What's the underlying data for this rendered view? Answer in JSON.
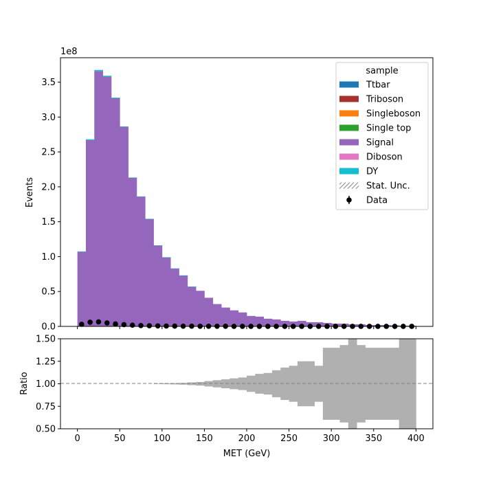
{
  "chart_data": {
    "type": "bar",
    "main": {
      "ylabel": "Events",
      "offset_text": "1e8",
      "yticks": [
        0,
        0.5,
        1.0,
        1.5,
        2.0,
        2.5,
        3.0,
        3.5
      ],
      "ytick_labels": [
        "0.0",
        "0.5",
        "1.0",
        "1.5",
        "2.0",
        "2.5",
        "3.0",
        "3.5"
      ],
      "ylim": [
        0,
        3.85
      ],
      "bin_edges": [
        0,
        10,
        20,
        30,
        40,
        50,
        60,
        70,
        80,
        90,
        100,
        110,
        120,
        130,
        140,
        150,
        160,
        170,
        180,
        190,
        200,
        210,
        220,
        230,
        240,
        250,
        260,
        270,
        280,
        290,
        300,
        310,
        320,
        330,
        340,
        350,
        360,
        370,
        380,
        390,
        400
      ],
      "series": [
        {
          "name": "Signal",
          "color": "#9467bd",
          "values": [
            1.07,
            2.67,
            3.66,
            3.58,
            3.27,
            2.86,
            2.13,
            1.86,
            1.54,
            1.16,
            0.99,
            0.83,
            0.73,
            0.57,
            0.51,
            0.41,
            0.32,
            0.27,
            0.23,
            0.2,
            0.15,
            0.14,
            0.11,
            0.1,
            0.08,
            0.07,
            0.08,
            0.06,
            0.06,
            0.05,
            0.04,
            0.04,
            0.03,
            0.03,
            0.02,
            0.02,
            0.02,
            0.015,
            0.01,
            0.01
          ]
        },
        {
          "name": "DY",
          "color": "#17becf",
          "values": [
            0.005,
            0.012,
            0.015,
            0.012,
            0.009,
            0.006,
            0.004,
            0.003,
            0.002,
            0.002,
            0.001,
            0.001,
            0.001,
            0.001,
            0.0,
            0.0,
            0.0,
            0.0,
            0.0,
            0.0,
            0.0,
            0.0,
            0.0,
            0.0,
            0.0,
            0.0,
            0.0,
            0.0,
            0.0,
            0.0,
            0.0,
            0.0,
            0.0,
            0.0,
            0.0,
            0.0,
            0.0,
            0.0,
            0.0,
            0.0
          ]
        }
      ],
      "data_points": {
        "name": "Data",
        "x": [
          5,
          15,
          25,
          35,
          45,
          55,
          65,
          75,
          85,
          95,
          105,
          115,
          125,
          135,
          145,
          155,
          165,
          175,
          185,
          195,
          205,
          215,
          225,
          235,
          245,
          255,
          265,
          275,
          285,
          295,
          305,
          315,
          325,
          335,
          345,
          355,
          365,
          375,
          385,
          395
        ],
        "y": [
          0.03,
          0.06,
          0.065,
          0.05,
          0.035,
          0.025,
          0.018,
          0.012,
          0.009,
          0.007,
          0.005,
          0.004,
          0.003,
          0.003,
          0.002,
          0.002,
          0.002,
          0.002,
          0.001,
          0.001,
          0.001,
          0.001,
          0.001,
          0.001,
          0.001,
          0.001,
          0.001,
          0.001,
          0.001,
          0.001,
          0.001,
          0.001,
          0.001,
          0.001,
          0.001,
          0.001,
          0.001,
          0.001,
          0.001,
          0.001
        ]
      }
    },
    "legend": {
      "title": "sample",
      "position": "upper right",
      "entries": [
        {
          "label": "Ttbar",
          "color": "#1f77b4",
          "kind": "patch"
        },
        {
          "label": "Triboson",
          "color": "#a8302e",
          "kind": "patch"
        },
        {
          "label": "Singleboson",
          "color": "#ff7f0e",
          "kind": "patch"
        },
        {
          "label": "Single top",
          "color": "#2ca02c",
          "kind": "patch"
        },
        {
          "label": "Signal",
          "color": "#9467bd",
          "kind": "patch"
        },
        {
          "label": "Diboson",
          "color": "#e377c2",
          "kind": "patch"
        },
        {
          "label": "DY",
          "color": "#17becf",
          "kind": "patch"
        },
        {
          "label": "Stat. Unc.",
          "color": "#888888",
          "kind": "hatch"
        },
        {
          "label": "Data",
          "color": "#000000",
          "kind": "errorbar"
        }
      ]
    },
    "ratio": {
      "ylabel": "Ratio",
      "ylim": [
        0.5,
        1.5
      ],
      "yticks": [
        0.5,
        0.75,
        1.0,
        1.25,
        1.5
      ],
      "ytick_labels": [
        "0.50",
        "0.75",
        "1.00",
        "1.25",
        "1.50"
      ],
      "reference_line": 1.0,
      "band_color": "#b0b0b0",
      "band_half_width": [
        0.0,
        0.0,
        0.0,
        0.0,
        0.0,
        0.0,
        0.0,
        0.0,
        0.0,
        0.003,
        0.005,
        0.007,
        0.01,
        0.015,
        0.02,
        0.03,
        0.04,
        0.05,
        0.06,
        0.07,
        0.09,
        0.11,
        0.12,
        0.15,
        0.18,
        0.2,
        0.25,
        0.25,
        0.2,
        0.4,
        0.4,
        0.43,
        0.57,
        0.43,
        0.4,
        0.4,
        0.4,
        0.4,
        0.5,
        0.5
      ]
    },
    "xaxis": {
      "label": "MET (GeV)",
      "xlim": [
        -20,
        420
      ],
      "ticks": [
        0,
        50,
        100,
        150,
        200,
        250,
        300,
        350,
        400
      ],
      "tick_labels": [
        "0",
        "50",
        "100",
        "150",
        "200",
        "250",
        "300",
        "350",
        "400"
      ]
    }
  }
}
